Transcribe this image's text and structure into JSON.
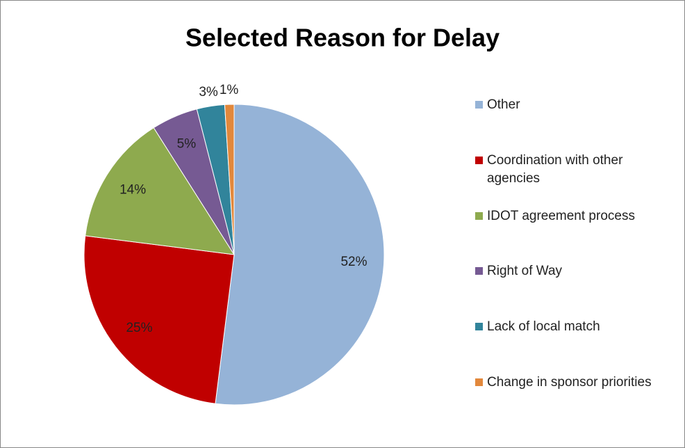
{
  "chart_data": {
    "type": "pie",
    "title": "Selected Reason for Delay",
    "categories": [
      "Other",
      "Coordination with other agencies",
      "IDOT agreement process",
      "Right of Way",
      "Lack of local match",
      "Change in sponsor priorities"
    ],
    "values": [
      52,
      25,
      14,
      5,
      3,
      1
    ],
    "value_labels": [
      "52%",
      "25%",
      "14%",
      "5%",
      "3%",
      "1%"
    ],
    "colors": [
      "#95b3d7",
      "#c00000",
      "#8eaa4e",
      "#765a93",
      "#31849b",
      "#e2883c"
    ],
    "legend": "right"
  }
}
